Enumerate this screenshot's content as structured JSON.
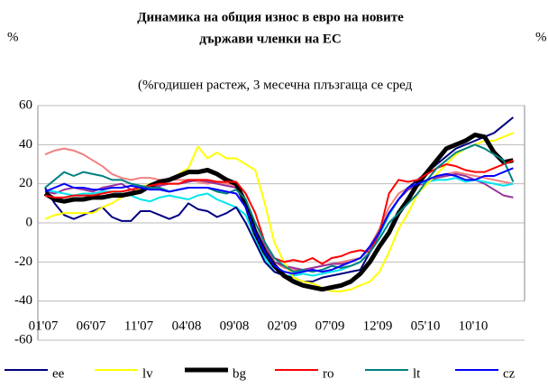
{
  "chart_data": {
    "type": "line",
    "title": [
      "Динамика на общия износ в евро на новите",
      "държави членки на ЕС"
    ],
    "left_axis_label": "%",
    "right_axis_label": "%",
    "subtitle": "(%годишен растеж, 3 месечна плъзгаща се сред",
    "categories": [
      "01'07",
      null,
      null,
      null,
      null,
      "06'07",
      null,
      null,
      null,
      null,
      "11'07",
      null,
      null,
      null,
      null,
      "04'08",
      null,
      null,
      null,
      null,
      "09'08",
      null,
      null,
      null,
      null,
      "02'09",
      null,
      null,
      null,
      null,
      "07'09",
      null,
      null,
      null,
      null,
      "12'09",
      null,
      null,
      null,
      null,
      "05'10",
      null,
      null,
      null,
      null,
      "10'10",
      null,
      null,
      null,
      null
    ],
    "ylim": [
      -60,
      60
    ],
    "yticks": [
      -60,
      -40,
      -20,
      0,
      20,
      40,
      60
    ],
    "grid": true,
    "series": [
      {
        "color": "#f08080",
        "values": [
          35,
          37,
          38,
          37,
          35,
          32,
          29,
          25,
          23,
          22,
          23,
          23,
          22,
          22,
          22,
          22,
          21,
          20,
          21,
          20,
          19,
          10,
          -5,
          -15,
          -20,
          -23,
          -24,
          -24,
          -23,
          -22,
          -21,
          -20,
          -19,
          -18,
          -12,
          -3,
          8,
          15,
          18,
          20,
          22,
          24,
          25,
          26,
          25,
          24,
          23,
          22,
          21,
          20
        ]
      },
      {
        "color": "#993399",
        "values": [
          16,
          15,
          17,
          18,
          17,
          16,
          18,
          19,
          20,
          17,
          16,
          18,
          19,
          20,
          20,
          21,
          22,
          21,
          20,
          19,
          18,
          10,
          -3,
          -12,
          -20,
          -22,
          -23,
          -24,
          -23,
          -22,
          -21,
          -21,
          -20,
          -18,
          -13,
          -4,
          5,
          12,
          17,
          19,
          21,
          23,
          24,
          25,
          24,
          22,
          20,
          17,
          14,
          13
        ]
      },
      {
        "color": "#00e5ee",
        "values": [
          17,
          16,
          15,
          14,
          15,
          15,
          16,
          16,
          15,
          14,
          12,
          11,
          13,
          14,
          13,
          12,
          14,
          15,
          12,
          10,
          8,
          4,
          -8,
          -18,
          -25,
          -27,
          -27,
          -26,
          -27,
          -26,
          -25,
          -24,
          -22,
          -20,
          -15,
          -6,
          4,
          12,
          18,
          20,
          21,
          22,
          22,
          23,
          21,
          22,
          21,
          20,
          19,
          20
        ]
      },
      {
        "name": "ee",
        "color": "#000080",
        "values": [
          18,
          10,
          4,
          2,
          4,
          6,
          8,
          3,
          1,
          1,
          6,
          6,
          4,
          2,
          4,
          10,
          7,
          6,
          3,
          5,
          8,
          0,
          -10,
          -20,
          -25,
          -27,
          -28,
          -30,
          -30,
          -28,
          -27,
          -26,
          -25,
          -24,
          -15,
          -5,
          5,
          12,
          18,
          22,
          26,
          30,
          34,
          38,
          40,
          42,
          44,
          46,
          50,
          54
        ]
      },
      {
        "name": "lv",
        "color": "#ffff00",
        "values": [
          2,
          4,
          5,
          5,
          5,
          5,
          8,
          10,
          13,
          15,
          18,
          20,
          21,
          22,
          25,
          28,
          39,
          33,
          36,
          33,
          33,
          30,
          27,
          10,
          -10,
          -20,
          -28,
          -30,
          -31,
          -33,
          -35,
          -35,
          -34,
          -32,
          -30,
          -25,
          -15,
          -3,
          5,
          15,
          20,
          25,
          30,
          35,
          38,
          40,
          42,
          42,
          44,
          46
        ]
      },
      {
        "name": "bg",
        "color": "#000000",
        "line_width": 5,
        "values": [
          15,
          12,
          11,
          12,
          12,
          13,
          13,
          14,
          14,
          15,
          16,
          19,
          21,
          22,
          24,
          26,
          26,
          27,
          25,
          22,
          20,
          10,
          -5,
          -15,
          -22,
          -27,
          -30,
          -32,
          -33,
          -34,
          -33,
          -32,
          -30,
          -26,
          -20,
          -12,
          -5,
          5,
          12,
          20,
          26,
          32,
          38,
          40,
          42,
          45,
          44,
          36,
          31,
          32
        ]
      },
      {
        "name": "ro",
        "color": "#ff0000",
        "values": [
          14,
          13,
          13,
          14,
          14,
          14,
          15,
          16,
          16,
          17,
          18,
          19,
          20,
          20,
          20,
          22,
          22,
          22,
          21,
          21,
          21,
          15,
          5,
          -10,
          -18,
          -20,
          -19,
          -20,
          -18,
          -21,
          -18,
          -17,
          -15,
          -14,
          -15,
          -5,
          15,
          22,
          21,
          22,
          25,
          28,
          30,
          29,
          27,
          26,
          26,
          28,
          30,
          32
        ]
      },
      {
        "name": "lt",
        "color": "#008080",
        "values": [
          18,
          22,
          26,
          24,
          26,
          25,
          24,
          22,
          22,
          20,
          19,
          18,
          18,
          16,
          17,
          18,
          18,
          18,
          16,
          15,
          17,
          12,
          0,
          -10,
          -18,
          -22,
          -25,
          -24,
          -25,
          -24,
          -22,
          -23,
          -22,
          -20,
          -15,
          -8,
          0,
          5,
          10,
          15,
          22,
          28,
          32,
          36,
          38,
          40,
          38,
          35,
          32,
          21
        ]
      },
      {
        "name": "cz",
        "color": "#0000ff",
        "values": [
          16,
          18,
          20,
          18,
          18,
          17,
          17,
          18,
          18,
          19,
          18,
          17,
          17,
          16,
          17,
          18,
          18,
          18,
          17,
          16,
          15,
          8,
          -5,
          -15,
          -22,
          -25,
          -26,
          -25,
          -24,
          -25,
          -24,
          -22,
          -20,
          -18,
          -12,
          -5,
          5,
          12,
          18,
          20,
          22,
          24,
          25,
          24,
          22,
          22,
          24,
          24,
          26,
          28
        ]
      }
    ]
  }
}
